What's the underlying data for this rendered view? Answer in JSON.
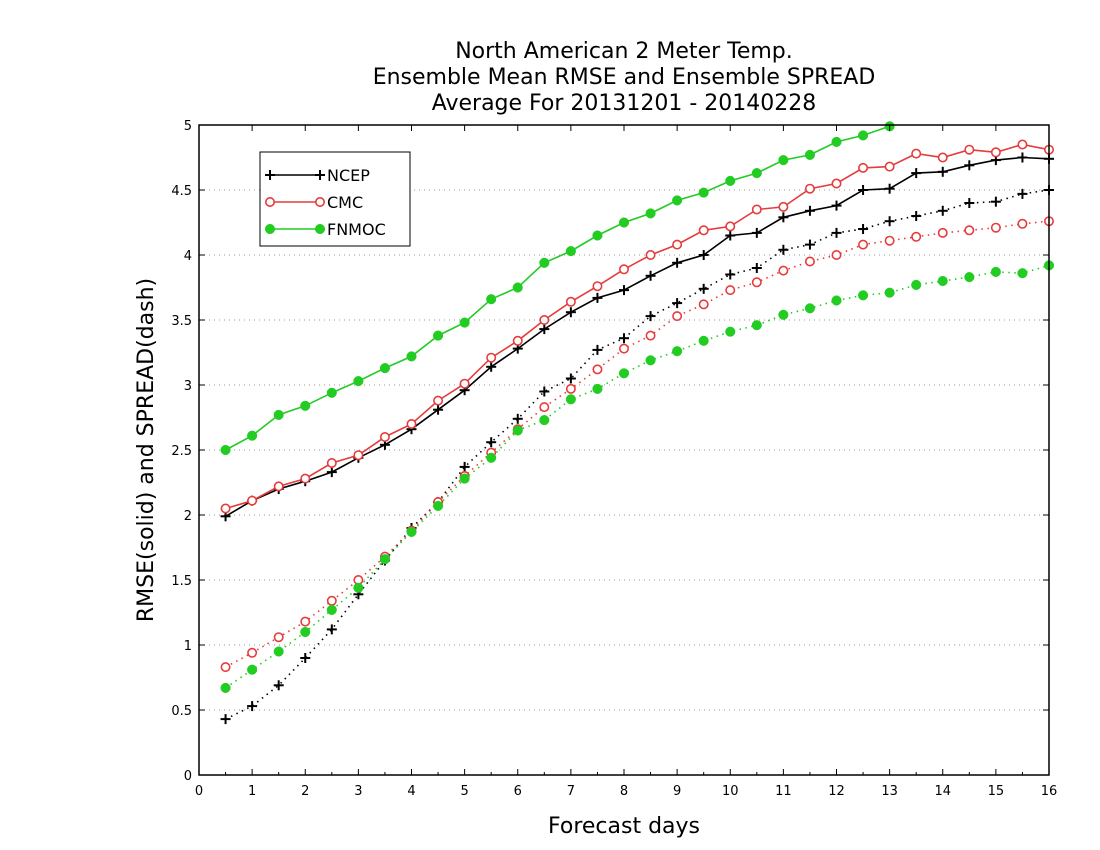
{
  "chart_data": {
    "type": "line",
    "title_lines": [
      "North American 2 Meter Temp.",
      "Ensemble Mean RMSE and Ensemble SPREAD",
      "Average For 20131201 - 20140228"
    ],
    "xlabel": "Forecast days",
    "ylabel": "RMSE(solid) and SPREAD(dash)",
    "xlim": [
      0,
      16
    ],
    "ylim": [
      0,
      5
    ],
    "x_ticks": [
      "0",
      "1",
      "2",
      "3",
      "4",
      "5",
      "6",
      "7",
      "8",
      "9",
      "10",
      "11",
      "12",
      "13",
      "14",
      "15",
      "16"
    ],
    "y_ticks": [
      "0",
      "0.5",
      "1",
      "1.5",
      "2",
      "2.5",
      "3",
      "3.5",
      "4",
      "4.5",
      "5"
    ],
    "grid": "horizontal-dotted",
    "legend_position": "top-left",
    "x": [
      0.5,
      1,
      1.5,
      2,
      2.5,
      3,
      3.5,
      4,
      4.5,
      5,
      5.5,
      6,
      6.5,
      7,
      7.5,
      8,
      8.5,
      9,
      9.5,
      10,
      10.5,
      11,
      11.5,
      12,
      12.5,
      13,
      13.5,
      14,
      14.5,
      15,
      15.5,
      16
    ],
    "series": [
      {
        "name": "NCEP",
        "color": "#000000",
        "marker": "plus",
        "rmse": [
          1.99,
          2.11,
          2.2,
          2.26,
          2.33,
          2.44,
          2.54,
          2.66,
          2.81,
          2.96,
          3.14,
          3.28,
          3.43,
          3.56,
          3.67,
          3.73,
          3.84,
          3.94,
          4.0,
          4.15,
          4.17,
          4.29,
          4.34,
          4.38,
          4.5,
          4.51,
          4.63,
          4.64,
          4.69,
          4.73,
          4.75,
          4.74
        ],
        "spread": [
          0.43,
          0.53,
          0.69,
          0.9,
          1.12,
          1.39,
          1.65,
          1.9,
          2.1,
          2.37,
          2.56,
          2.74,
          2.95,
          3.05,
          3.27,
          3.36,
          3.53,
          3.63,
          3.74,
          3.85,
          3.9,
          4.04,
          4.08,
          4.17,
          4.2,
          4.26,
          4.3,
          4.34,
          4.4,
          4.41,
          4.47,
          4.5
        ]
      },
      {
        "name": "CMC",
        "color": "#e63b3b",
        "marker": "open-circle",
        "rmse": [
          2.05,
          2.11,
          2.22,
          2.28,
          2.4,
          2.46,
          2.6,
          2.7,
          2.88,
          3.01,
          3.21,
          3.34,
          3.5,
          3.64,
          3.76,
          3.89,
          4.0,
          4.08,
          4.19,
          4.22,
          4.35,
          4.37,
          4.51,
          4.55,
          4.67,
          4.68,
          4.78,
          4.75,
          4.81,
          4.79,
          4.85,
          4.81
        ],
        "spread": [
          0.83,
          0.94,
          1.06,
          1.18,
          1.34,
          1.5,
          1.68,
          1.88,
          2.1,
          2.3,
          2.48,
          2.66,
          2.83,
          2.97,
          3.12,
          3.28,
          3.38,
          3.53,
          3.62,
          3.73,
          3.79,
          3.88,
          3.95,
          4.0,
          4.08,
          4.11,
          4.14,
          4.17,
          4.19,
          4.21,
          4.24,
          4.26
        ]
      },
      {
        "name": "FNMOC",
        "color": "#22cc22",
        "marker": "filled-circle",
        "rmse": [
          2.5,
          2.61,
          2.77,
          2.84,
          2.94,
          3.03,
          3.13,
          3.22,
          3.38,
          3.48,
          3.66,
          3.75,
          3.94,
          4.03,
          4.15,
          4.25,
          4.32,
          4.42,
          4.48,
          4.57,
          4.63,
          4.73,
          4.77,
          4.87,
          4.92,
          4.99
        ],
        "spread": [
          0.67,
          0.81,
          0.95,
          1.1,
          1.27,
          1.44,
          1.66,
          1.87,
          2.07,
          2.28,
          2.44,
          2.65,
          2.73,
          2.89,
          2.97,
          3.09,
          3.19,
          3.26,
          3.34,
          3.41,
          3.46,
          3.54,
          3.59,
          3.65,
          3.69,
          3.71,
          3.77,
          3.8,
          3.83,
          3.87,
          3.86,
          3.92
        ]
      }
    ]
  }
}
